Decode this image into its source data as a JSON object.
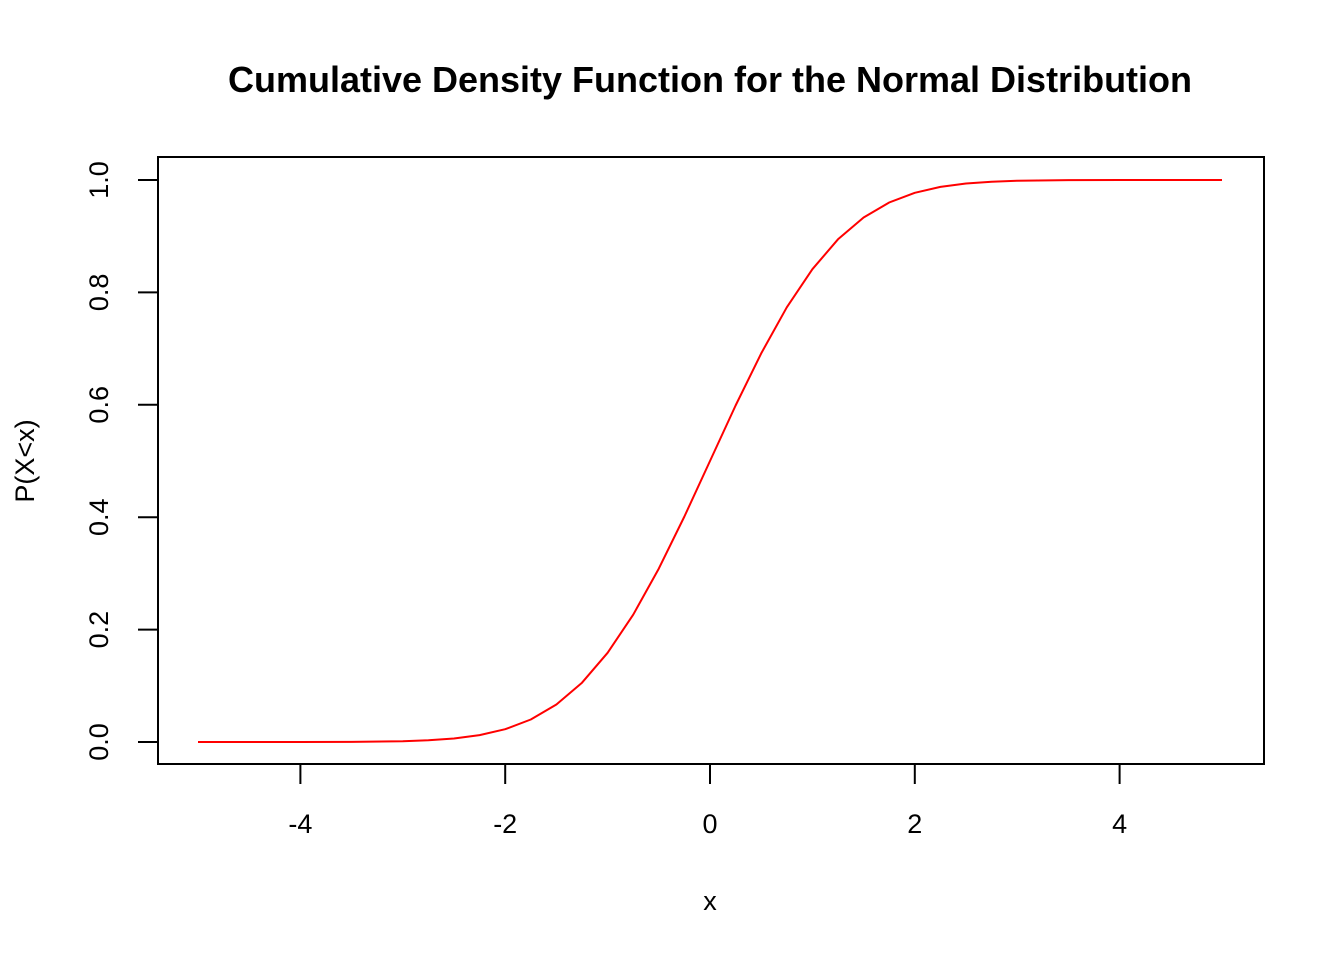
{
  "chart_data": {
    "type": "line",
    "title": "Cumulative Density Function for the Normal Distribution",
    "xlabel": "x",
    "ylabel": "P(X<x)",
    "xlim": [
      -5,
      5
    ],
    "ylim": [
      0,
      1
    ],
    "x_ticks": [
      -4,
      -2,
      0,
      2,
      4
    ],
    "x_tick_labels": [
      "-4",
      "-2",
      "0",
      "2",
      "4"
    ],
    "y_ticks": [
      0,
      0.2,
      0.4,
      0.6,
      0.8,
      1
    ],
    "y_tick_labels": [
      "0.0",
      "0.2",
      "0.4",
      "0.6",
      "0.8",
      "1.0"
    ],
    "grid": false,
    "series": [
      {
        "color": "#ff0000",
        "x": [
          -5,
          -4.5,
          -4,
          -3.5,
          -3,
          -2.75,
          -2.5,
          -2.25,
          -2,
          -1.75,
          -1.5,
          -1.25,
          -1,
          -0.75,
          -0.5,
          -0.25,
          0,
          0.25,
          0.5,
          0.75,
          1,
          1.25,
          1.5,
          1.75,
          2,
          2.25,
          2.5,
          2.75,
          3,
          3.5,
          4,
          4.5,
          5
        ],
        "y": [
          0,
          0,
          0,
          0.0002,
          0.0013,
          0.003,
          0.0062,
          0.0122,
          0.0228,
          0.0401,
          0.0668,
          0.1056,
          0.1587,
          0.2266,
          0.3085,
          0.4013,
          0.5,
          0.5987,
          0.6915,
          0.7734,
          0.8413,
          0.8944,
          0.9332,
          0.9599,
          0.9772,
          0.9878,
          0.9938,
          0.997,
          0.9987,
          0.9998,
          1,
          1,
          1
        ]
      }
    ]
  }
}
